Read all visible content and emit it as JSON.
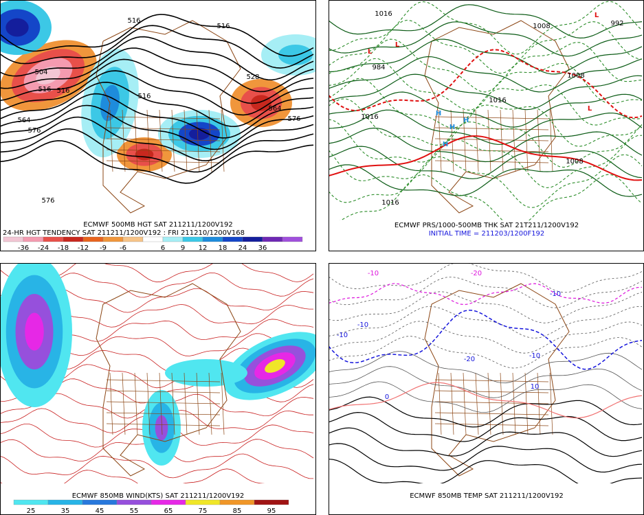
{
  "panels": [
    {
      "captions": [
        "ECMWF 500MB HGT SAT 211211/1200V192",
        "24-HR HGT TENDENCY SAT 211211/1200V192 : FRI 211210/1200V168"
      ],
      "labels": [
        "516",
        "516",
        "516",
        "504",
        "516",
        "564",
        "576",
        "576",
        "528",
        "564",
        "576",
        "516"
      ],
      "colorbar": {
        "ticks": [
          -36,
          -24,
          -18,
          -12,
          -9,
          -6,
          6,
          9,
          12,
          18,
          24,
          36
        ],
        "colors": [
          "#f2c6d4",
          "#f49bb0",
          "#e8504a",
          "#c8281e",
          "#e8641e",
          "#f0963c",
          "#f7c488",
          "#ffffff",
          "#a6eef5",
          "#3cc8e6",
          "#1e8cdc",
          "#1446c8",
          "#141e9c",
          "#6e28b4",
          "#a050dc"
        ]
      }
    },
    {
      "captions": [
        "ECMWF PRS/1000-500MB THK SAT 21T211/1200V192",
        "INITIAL TIME = 211203/1200F192"
      ],
      "labels": [
        "1016",
        "1016",
        "1008",
        "1016",
        "992",
        "1008",
        "984",
        "1008",
        "1016",
        "L",
        "L",
        "L",
        "H",
        "H",
        "H",
        "H",
        "L"
      ]
    },
    {
      "captions": [
        "ECMWF 850MB WIND(KTS) SAT 211211/1200V192"
      ],
      "colorbar": {
        "ticks": [
          25,
          35,
          45,
          55,
          65,
          75,
          85,
          95
        ],
        "colors": [
          "#50e6f0",
          "#28b4e6",
          "#2878dc",
          "#9650dc",
          "#e628e6",
          "#f0e628",
          "#f09628",
          "#a01414"
        ]
      }
    },
    {
      "captions": [
        "ECMWF 850MB TEMP SAT 211211/1200V192"
      ],
      "labels": [
        "-10",
        "-20",
        "-10",
        "-10",
        "-10",
        "-20",
        "-10",
        "0",
        "10"
      ]
    }
  ]
}
